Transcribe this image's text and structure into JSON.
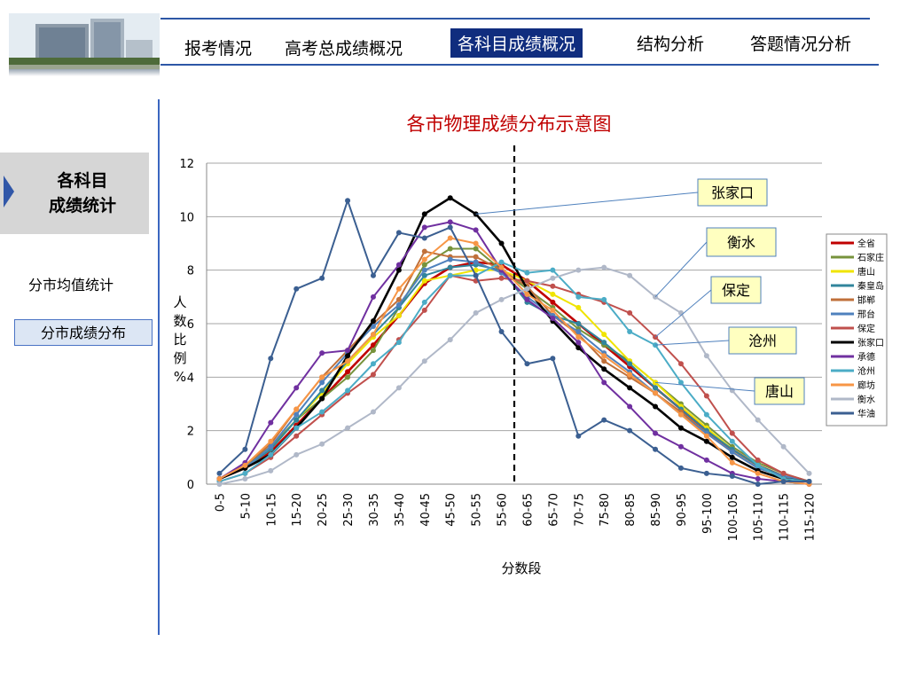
{
  "nav": {
    "items": [
      "报考情况",
      "高考总成绩概况",
      "各科目成绩概况",
      "结构分析",
      "答题情况分析"
    ],
    "active_index": 2
  },
  "sidebar": {
    "active_label_line1": "各科目",
    "active_label_line2": "成绩统计",
    "item_1": "分市均值统计",
    "item_2": "分市成绩分布"
  },
  "chart_data": {
    "type": "line",
    "title": "各市物理成绩分布示意图",
    "xlabel": "分数段",
    "ylabel": "人数比例%",
    "ylim": [
      0,
      12
    ],
    "yticks": [
      0,
      2,
      4,
      6,
      8,
      10,
      12
    ],
    "grid": true,
    "legend_position": "right",
    "reference_line_after_category": "55-60",
    "categories": [
      "0-5",
      "5-10",
      "10-15",
      "15-20",
      "20-25",
      "25-30",
      "30-35",
      "35-40",
      "40-45",
      "45-50",
      "50-55",
      "55-60",
      "60-65",
      "65-70",
      "70-75",
      "75-80",
      "80-85",
      "85-90",
      "90-95",
      "95-100",
      "100-105",
      "105-110",
      "110-115",
      "115-120"
    ],
    "series": [
      {
        "name": "全省",
        "color": "#c00000",
        "values": [
          0.2,
          0.6,
          1.2,
          2.2,
          3.2,
          4.2,
          5.2,
          6.3,
          7.5,
          8.1,
          8.3,
          8.2,
          7.6,
          6.8,
          6.0,
          5.2,
          4.4,
          3.6,
          2.8,
          2.0,
          1.3,
          0.7,
          0.3,
          0.1
        ]
      },
      {
        "name": "石家庄",
        "color": "#77933c",
        "values": [
          0.2,
          0.7,
          1.4,
          2.4,
          3.2,
          4.0,
          5.0,
          6.6,
          8.2,
          8.8,
          8.8,
          8.0,
          7.3,
          6.6,
          5.8,
          5.2,
          4.6,
          3.8,
          3.0,
          2.2,
          1.4,
          0.8,
          0.4,
          0.1
        ]
      },
      {
        "name": "唐山",
        "color": "#f0e400",
        "values": [
          0.2,
          0.6,
          1.3,
          2.4,
          3.4,
          4.5,
          5.5,
          6.3,
          7.6,
          7.8,
          8.0,
          8.0,
          7.6,
          7.1,
          6.6,
          5.6,
          4.6,
          3.8,
          2.9,
          2.1,
          1.3,
          0.7,
          0.3,
          0.1
        ]
      },
      {
        "name": "秦皇岛",
        "color": "#31859c",
        "values": [
          0.2,
          0.6,
          1.3,
          2.4,
          3.5,
          4.6,
          5.6,
          6.6,
          7.8,
          8.1,
          8.2,
          8.0,
          6.8,
          6.3,
          6.0,
          5.3,
          4.5,
          3.6,
          2.8,
          2.0,
          1.3,
          0.7,
          0.3,
          0.1
        ]
      },
      {
        "name": "邯郸",
        "color": "#c0703a",
        "values": [
          0.2,
          0.7,
          1.5,
          2.8,
          4.0,
          5.0,
          6.0,
          6.9,
          8.7,
          8.5,
          8.5,
          8.0,
          7.4,
          6.3,
          5.6,
          4.6,
          4.0,
          3.4,
          2.7,
          1.9,
          1.2,
          0.6,
          0.3,
          0.1
        ]
      },
      {
        "name": "邢台",
        "color": "#4f81bd",
        "values": [
          0.2,
          0.6,
          1.4,
          2.6,
          3.8,
          4.9,
          5.9,
          6.7,
          8.0,
          8.4,
          8.3,
          7.9,
          7.0,
          6.3,
          5.7,
          4.9,
          4.2,
          3.4,
          2.6,
          1.9,
          1.2,
          0.6,
          0.3,
          0.1
        ]
      },
      {
        "name": "保定",
        "color": "#c0504d",
        "values": [
          0.1,
          0.4,
          1.0,
          1.8,
          2.6,
          3.4,
          4.1,
          5.4,
          6.5,
          7.8,
          7.6,
          7.7,
          7.6,
          7.4,
          7.1,
          6.8,
          6.4,
          5.5,
          4.5,
          3.3,
          1.9,
          0.9,
          0.4,
          0.1
        ]
      },
      {
        "name": "张家口",
        "color": "#000000",
        "values": [
          0.2,
          0.6,
          1.1,
          2.1,
          3.2,
          4.8,
          6.1,
          8.0,
          10.1,
          10.7,
          10.1,
          9.0,
          7.3,
          6.1,
          5.1,
          4.3,
          3.6,
          2.9,
          2.1,
          1.6,
          1.0,
          0.5,
          0.2,
          0.1
        ]
      },
      {
        "name": "承德",
        "color": "#7030a0",
        "values": [
          0.2,
          0.8,
          2.3,
          3.6,
          4.9,
          5.0,
          7.0,
          8.2,
          9.6,
          9.8,
          9.5,
          8.0,
          6.9,
          6.2,
          5.3,
          3.8,
          2.9,
          1.9,
          1.4,
          0.9,
          0.4,
          0.2,
          0.1,
          0.0
        ]
      },
      {
        "name": "沧州",
        "color": "#4bacc6",
        "values": [
          0.1,
          0.4,
          1.1,
          2.1,
          2.7,
          3.5,
          4.5,
          5.3,
          6.8,
          7.8,
          7.8,
          8.3,
          7.9,
          8.0,
          7.0,
          6.9,
          5.7,
          5.2,
          3.8,
          2.6,
          1.6,
          0.7,
          0.2,
          0.1
        ]
      },
      {
        "name": "廊坊",
        "color": "#f79646",
        "values": [
          0.2,
          0.7,
          1.6,
          2.8,
          4.0,
          4.6,
          5.6,
          7.3,
          8.4,
          9.2,
          9.0,
          8.1,
          7.1,
          6.5,
          5.5,
          4.8,
          4.1,
          3.4,
          2.6,
          1.8,
          0.8,
          0.4,
          0.1,
          0.0
        ]
      },
      {
        "name": "衡水",
        "color": "#b0b8c8",
        "values": [
          0.0,
          0.2,
          0.5,
          1.1,
          1.5,
          2.1,
          2.7,
          3.6,
          4.6,
          5.4,
          6.4,
          6.9,
          7.3,
          7.7,
          8.0,
          8.1,
          7.8,
          7.0,
          6.4,
          4.8,
          3.5,
          2.4,
          1.4,
          0.4
        ]
      },
      {
        "name": "华油",
        "color": "#3b5f91",
        "values": [
          0.4,
          1.3,
          4.7,
          7.3,
          7.7,
          10.6,
          7.8,
          9.4,
          9.2,
          9.6,
          7.8,
          5.7,
          4.5,
          4.7,
          1.8,
          2.4,
          2.0,
          1.3,
          0.6,
          0.4,
          0.3,
          0.0,
          0.1,
          0.1
        ]
      }
    ],
    "callouts": [
      {
        "label": "张家口",
        "series": "张家口"
      },
      {
        "label": "衡水",
        "series": "衡水"
      },
      {
        "label": "保定",
        "series": "保定"
      },
      {
        "label": "沧州",
        "series": "沧州"
      },
      {
        "label": "唐山",
        "series": "唐山"
      }
    ]
  }
}
